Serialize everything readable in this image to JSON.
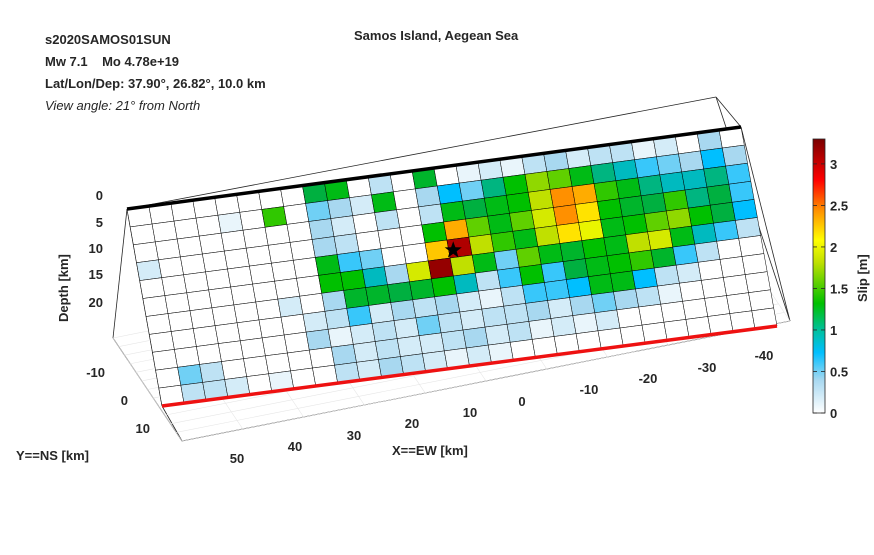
{
  "header": {
    "event_id": "s2020SAMOS01SUN",
    "magnitude_line": "Mw 7.1    Mo 4.78e+19",
    "location_line": "Lat/Lon/Dep: 37.90°, 26.82°, 10.0 km",
    "view_line": "View angle:  21° from North"
  },
  "chart_data": {
    "type": "heatmap",
    "title": "Samos Island, Aegean Sea",
    "xlabel": "X==EW [km]",
    "ylabel": "Y==NS [km]",
    "zlabel": "Depth [km]",
    "colorbar_label": "Slip [m]",
    "x_ticks": [
      "50",
      "40",
      "30",
      "20",
      "10",
      "0",
      "-10",
      "-20",
      "-30",
      "-40"
    ],
    "y_ticks": [
      "-10",
      "0",
      "10"
    ],
    "z_ticks": [
      "0",
      "5",
      "10",
      "15",
      "20"
    ],
    "colorbar_ticks": [
      "0",
      "0.5",
      "1",
      "1.5",
      "2",
      "2.5",
      "3"
    ],
    "colorbar_range": [
      0,
      3.3
    ],
    "colormap": [
      "#ffffff",
      "#00bfff",
      "#00c000",
      "#ffff00",
      "#ff8000",
      "#ff0000",
      "#800000"
    ],
    "hypocenter": {
      "along_strike_km": -2,
      "depth_km": 10
    },
    "grid_cols": 28,
    "grid_rows": 11,
    "slip": [
      [
        0,
        0,
        0,
        0,
        0,
        0,
        0,
        0,
        1,
        1.2,
        0,
        0.3,
        0,
        1.1,
        0,
        0.1,
        0.2,
        0.1,
        0.3,
        0.4,
        0.2,
        0.3,
        0.3,
        0.1,
        0.2,
        0,
        0.4,
        0
      ],
      [
        0,
        0,
        0,
        0,
        0.1,
        0,
        1.4,
        0,
        0.5,
        0.4,
        0.2,
        1.2,
        0,
        0.4,
        0.7,
        0.5,
        0.9,
        1.3,
        1.6,
        1.5,
        1.2,
        0.9,
        0.8,
        0.6,
        0.5,
        0.4,
        0.7,
        0.4
      ],
      [
        0,
        0,
        0,
        0,
        0,
        0,
        0,
        0,
        0.4,
        0.2,
        0,
        0.3,
        0,
        0.3,
        1.2,
        1.0,
        1.2,
        1.3,
        1.7,
        2.4,
        2.3,
        1.4,
        1.2,
        0.9,
        0.8,
        0.8,
        0.9,
        0.6
      ],
      [
        0.2,
        0,
        0,
        0,
        0,
        0,
        0,
        0,
        0.4,
        0.3,
        0,
        0,
        0,
        1.3,
        2.3,
        1.5,
        1.2,
        1.5,
        1.8,
        2.4,
        2.1,
        1.3,
        1.1,
        1.0,
        1.4,
        0.9,
        1.0,
        0.6
      ],
      [
        0,
        0,
        0,
        0,
        0,
        0,
        0,
        0,
        1.2,
        0.6,
        0.5,
        0,
        0,
        2.2,
        3.1,
        1.7,
        1.4,
        1.2,
        1.7,
        2.1,
        1.9,
        1.2,
        1.3,
        1.5,
        1.6,
        1.3,
        1.0,
        0.7
      ],
      [
        0,
        0,
        0,
        0,
        0,
        0,
        0,
        0,
        1.3,
        1.3,
        0.8,
        0.4,
        1.8,
        3.2,
        1.7,
        1.2,
        0.5,
        1.5,
        1.2,
        1.1,
        1.3,
        1.2,
        1.7,
        1.8,
        1.2,
        0.8,
        0.6,
        0.3
      ],
      [
        0,
        0,
        0,
        0,
        0,
        0,
        0.2,
        0,
        0.4,
        1.1,
        1.1,
        1.0,
        1.1,
        1.3,
        0.8,
        0.3,
        0.6,
        1.3,
        0.6,
        1.0,
        1.2,
        1.3,
        1.4,
        1.1,
        0.6,
        0.3,
        0,
        0
      ],
      [
        0,
        0,
        0,
        0,
        0,
        0,
        0,
        0.2,
        0.3,
        0.6,
        0.2,
        0.4,
        0.3,
        0.4,
        0.2,
        0.1,
        0.3,
        0.6,
        0.6,
        0.7,
        1.2,
        1.2,
        0.7,
        0.3,
        0.2,
        0,
        0,
        0
      ],
      [
        0,
        0,
        0,
        0,
        0,
        0,
        0,
        0.4,
        0.1,
        0.2,
        0.3,
        0.2,
        0.5,
        0.3,
        0.2,
        0.3,
        0.3,
        0.4,
        0.2,
        0.4,
        0.5,
        0.4,
        0.3,
        0.1,
        0,
        0,
        0,
        0
      ],
      [
        0,
        0.5,
        0.3,
        0,
        0,
        0,
        0,
        0,
        0.4,
        0.2,
        0.3,
        0.2,
        0.2,
        0.3,
        0.4,
        0.2,
        0.3,
        0.1,
        0.2,
        0.1,
        0.2,
        0,
        0,
        0,
        0,
        0,
        0,
        0
      ],
      [
        0,
        0.3,
        0.3,
        0.2,
        0,
        0.1,
        0,
        0,
        0.3,
        0.2,
        0.4,
        0.3,
        0.2,
        0.1,
        0.2,
        0.1,
        0,
        0,
        0,
        0,
        0,
        0,
        0,
        0,
        0,
        0,
        0,
        0
      ]
    ]
  }
}
